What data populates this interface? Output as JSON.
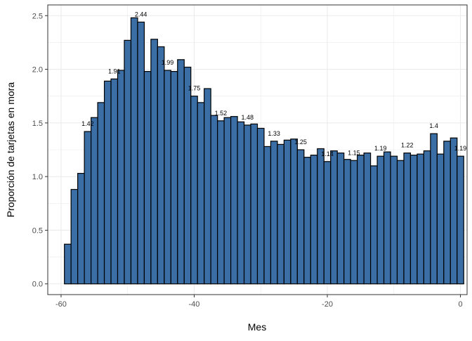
{
  "chart_data": {
    "type": "bar",
    "xlabel": "Mes",
    "ylabel": "Proporción de tarjetas en mora",
    "xlim": [
      -62,
      1
    ],
    "ylim": [
      -0.1,
      2.6
    ],
    "xticks": [
      -60,
      -40,
      -20,
      0
    ],
    "yticks": [
      0,
      0.5,
      1,
      1.5,
      2,
      2.5
    ],
    "xtick_labels": [
      "-60",
      "-40",
      "-20",
      "0"
    ],
    "ytick_labels": [
      "0.0",
      "0.5",
      "1.0",
      "1.5",
      "2.0",
      "2.5"
    ],
    "grid": true,
    "colors": {
      "bar_fill": "#3a6ea5",
      "bar_stroke": "#000000",
      "grid": "#ebebeb",
      "panel_border": "#333333"
    },
    "x": [
      -59,
      -58,
      -57,
      -56,
      -55,
      -54,
      -53,
      -52,
      -51,
      -50,
      -49,
      -48,
      -47,
      -46,
      -45,
      -44,
      -43,
      -42,
      -41,
      -40,
      -39,
      -38,
      -37,
      -36,
      -35,
      -34,
      -33,
      -32,
      -31,
      -30,
      -29,
      -28,
      -27,
      -26,
      -25,
      -24,
      -23,
      -22,
      -21,
      -20,
      -19,
      -18,
      -17,
      -16,
      -15,
      -14,
      -13,
      -12,
      -11,
      -10,
      -9,
      -8,
      -7,
      -6,
      -5,
      -4,
      -3,
      -2,
      -1,
      0
    ],
    "values": [
      0.37,
      0.88,
      1.03,
      1.42,
      1.55,
      1.69,
      1.89,
      1.91,
      1.99,
      2.27,
      2.48,
      2.44,
      1.98,
      2.28,
      2.21,
      1.99,
      1.98,
      2.09,
      2.02,
      1.75,
      1.69,
      1.82,
      1.57,
      1.52,
      1.55,
      1.56,
      1.51,
      1.48,
      1.49,
      1.45,
      1.28,
      1.33,
      1.3,
      1.34,
      1.35,
      1.25,
      1.18,
      1.2,
      1.26,
      1.14,
      1.24,
      1.22,
      1.16,
      1.15,
      1.2,
      1.22,
      1.1,
      1.19,
      1.23,
      1.19,
      1.15,
      1.22,
      1.2,
      1.21,
      1.24,
      1.4,
      1.21,
      1.33,
      1.36,
      1.19
    ],
    "data_labels": [
      {
        "x": -56,
        "text": "1.42"
      },
      {
        "x": -52,
        "text": "1.91"
      },
      {
        "x": -48,
        "text": "2.44"
      },
      {
        "x": -44,
        "text": "1.99"
      },
      {
        "x": -40,
        "text": "1.75"
      },
      {
        "x": -36,
        "text": "1.52"
      },
      {
        "x": -32,
        "text": "1.48"
      },
      {
        "x": -28,
        "text": "1.33"
      },
      {
        "x": -24,
        "text": "1.25"
      },
      {
        "x": -20,
        "text": "1.14"
      },
      {
        "x": -16,
        "text": "1.15"
      },
      {
        "x": -12,
        "text": "1.19"
      },
      {
        "x": -8,
        "text": "1.22"
      },
      {
        "x": -4,
        "text": "1.4"
      },
      {
        "x": 0,
        "text": "1.19"
      }
    ]
  }
}
